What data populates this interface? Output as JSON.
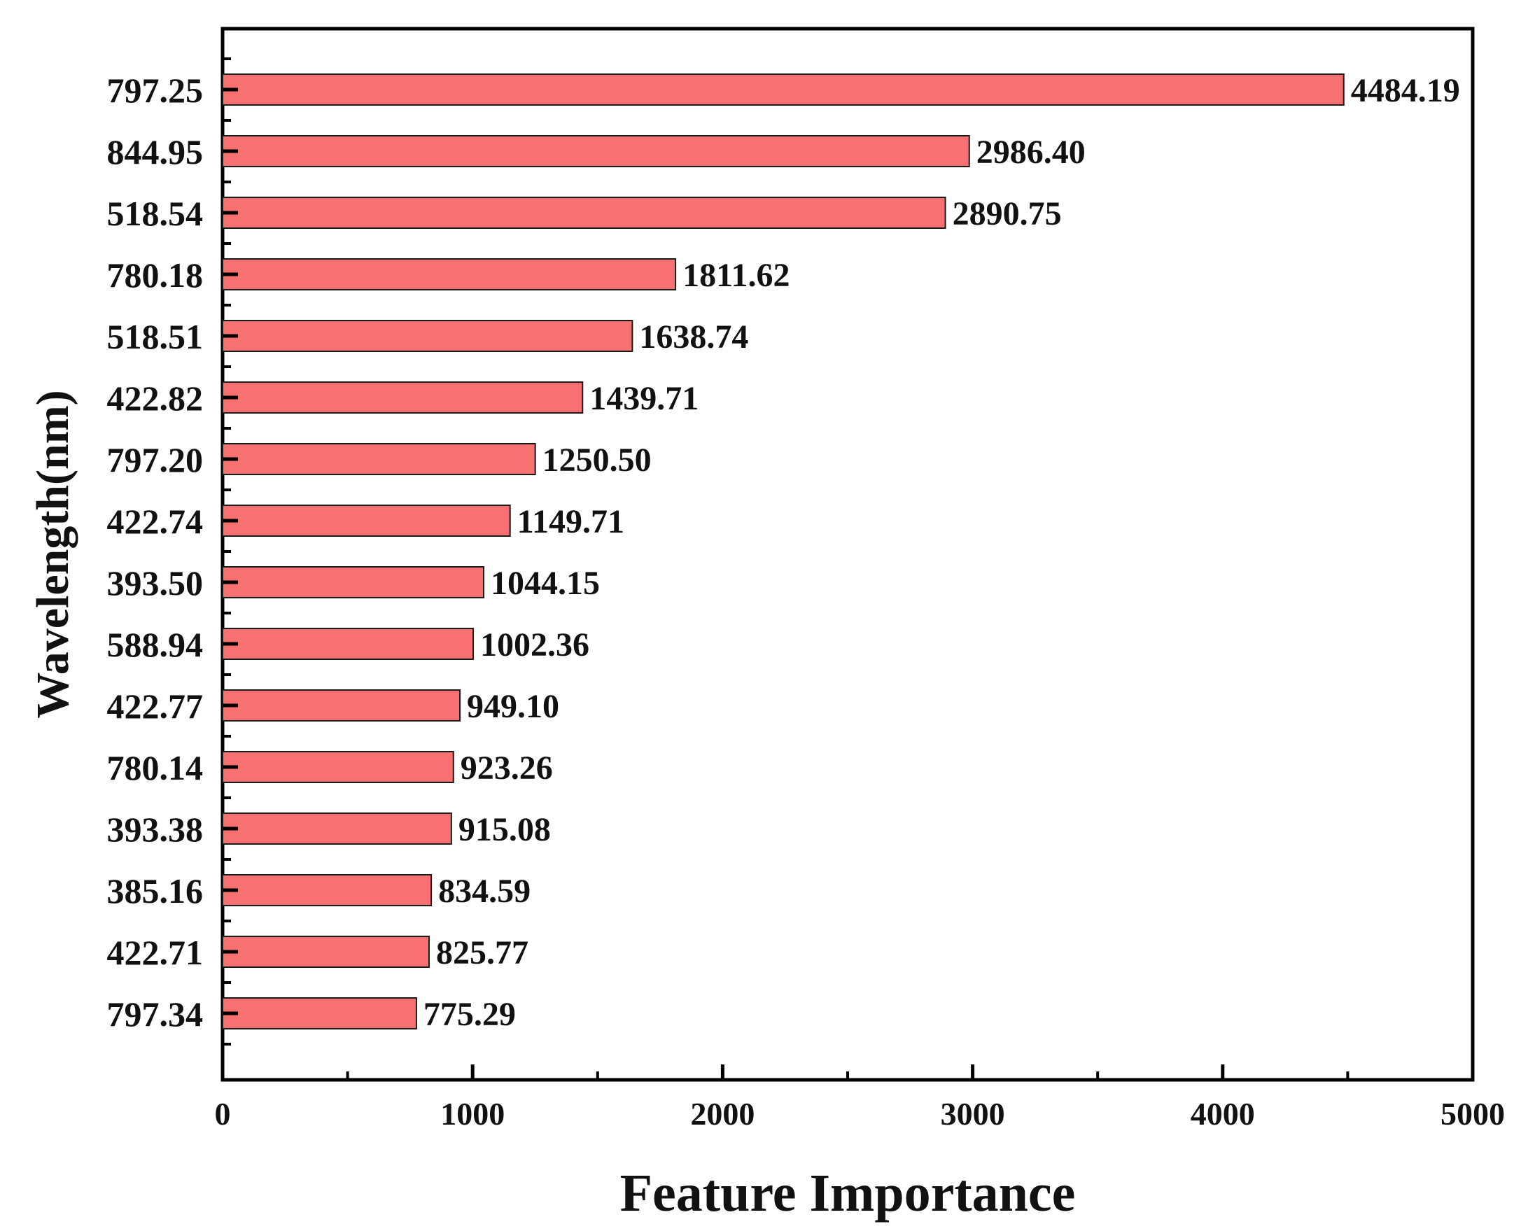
{
  "chart_data": {
    "type": "bar",
    "orientation": "horizontal",
    "title": "",
    "xlabel": "Feature Importance",
    "ylabel": "Wavelength(nm)",
    "categories": [
      "797.25",
      "844.95",
      "518.54",
      "780.18",
      "518.51",
      "422.82",
      "797.20",
      "422.74",
      "393.50",
      "588.94",
      "422.77",
      "780.14",
      "393.38",
      "385.16",
      "422.71",
      "797.34"
    ],
    "values": [
      4484.19,
      2986.4,
      2890.75,
      1811.62,
      1638.74,
      1439.71,
      1250.5,
      1149.71,
      1044.15,
      1002.36,
      949.1,
      923.26,
      915.08,
      834.59,
      825.77,
      775.29
    ],
    "value_labels": [
      "4484.19",
      "2986.40",
      "2890.75",
      "1811.62",
      "1638.74",
      "1439.71",
      "1250.50",
      "1149.71",
      "1044.15",
      "1002.36",
      "949.10",
      "923.26",
      "915.08",
      "834.59",
      "825.77",
      "775.29"
    ],
    "xlim": [
      0,
      5000
    ],
    "xticks": [
      0,
      1000,
      2000,
      3000,
      4000,
      5000
    ],
    "xtick_labels": [
      "0",
      "1000",
      "2000",
      "3000",
      "4000",
      "5000"
    ],
    "grid": false,
    "legend": "none",
    "colors": {
      "bar_fill": "#F87171",
      "bar_stroke": "#1a1a1a",
      "axis": "#000000"
    }
  }
}
